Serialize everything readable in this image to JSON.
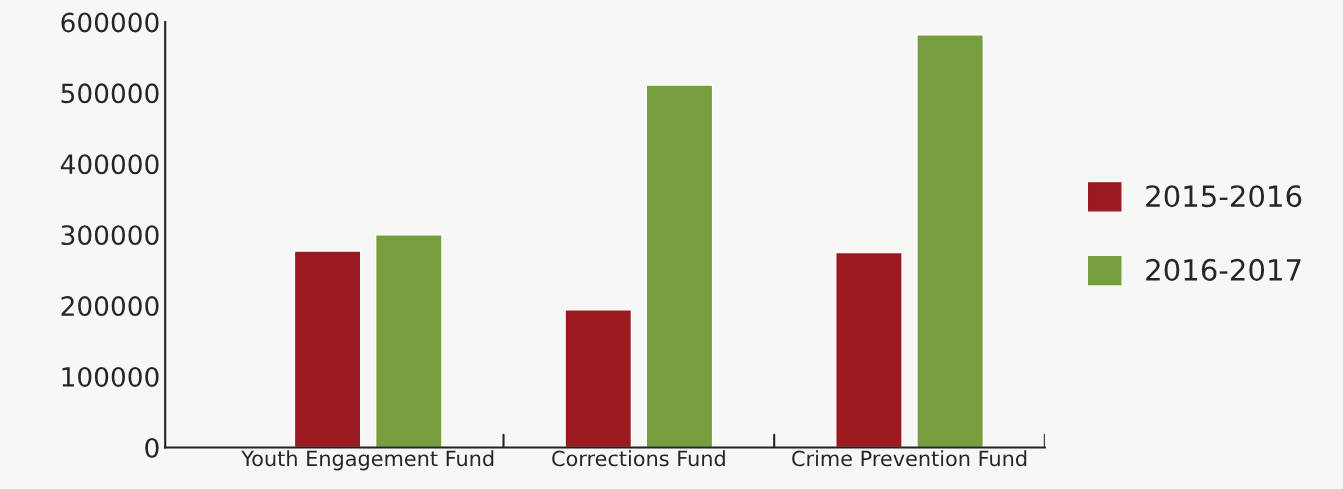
{
  "chart_data": {
    "type": "bar",
    "categories": [
      "Youth Engagement Fund",
      "Corrections Fund",
      "Crime Prevention Fund"
    ],
    "series": [
      {
        "name": "2015-2016",
        "color": "#9a1a20",
        "values": [
          277000,
          194000,
          275000
        ]
      },
      {
        "name": "2016-2017",
        "color": "#769e3e",
        "values": [
          300000,
          511000,
          582000
        ]
      }
    ],
    "ylim": [
      0,
      600000
    ],
    "yticks": [
      0,
      100000,
      200000,
      300000,
      400000,
      500000,
      600000
    ],
    "grid": false,
    "legend": "right"
  }
}
